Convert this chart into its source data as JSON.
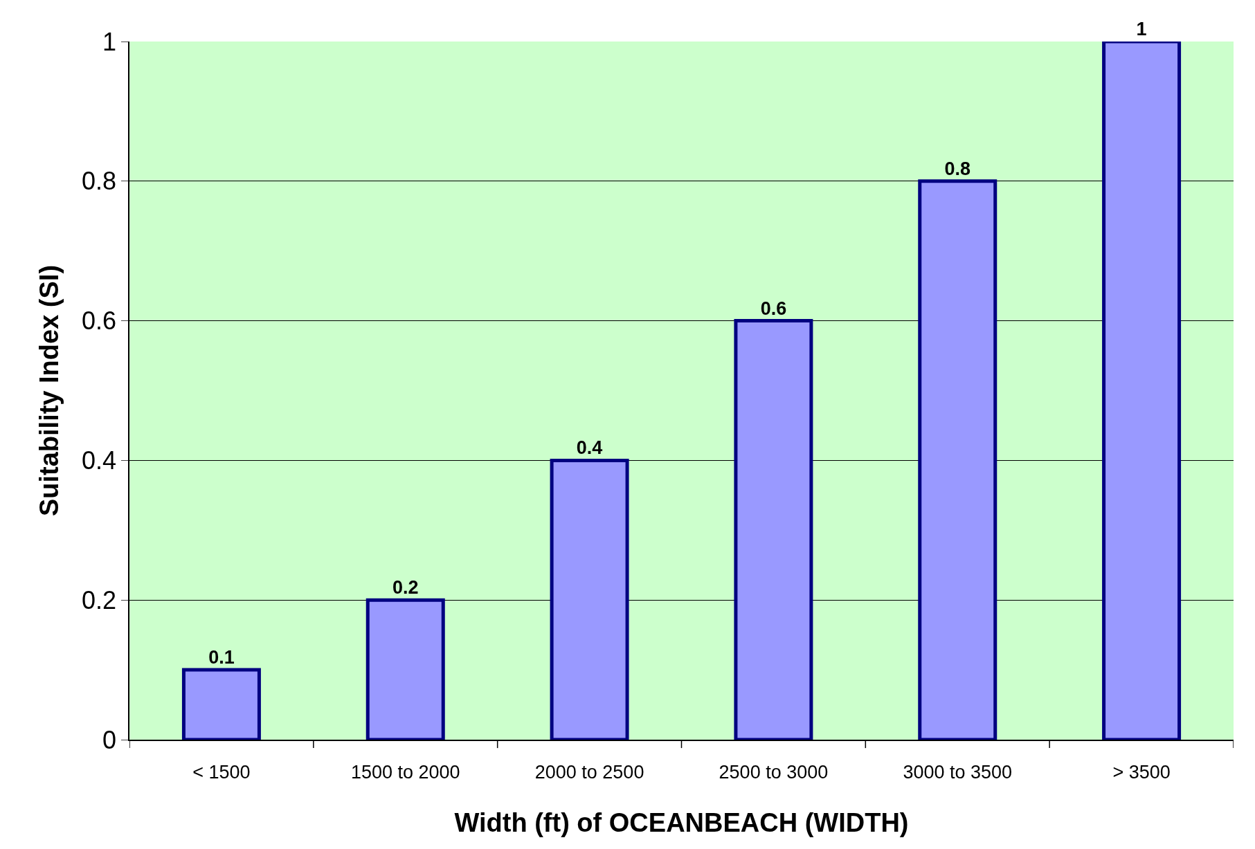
{
  "chart_data": {
    "type": "bar",
    "xlabel": "Width (ft) of OCEANBEACH (WIDTH)",
    "ylabel": "Suitability Index (SI)",
    "categories": [
      "< 1500",
      "1500 to 2000",
      "2000 to 2500",
      "2500 to 3000",
      "3000 to 3500",
      "> 3500"
    ],
    "values": [
      0.1,
      0.2,
      0.4,
      0.6,
      0.8,
      1
    ],
    "color": "#9999ff",
    "ylim": [
      0,
      1
    ],
    "yticks": [
      0,
      0.2,
      0.4,
      0.6,
      0.8,
      1
    ],
    "grid": "y",
    "data_labels": true
  }
}
